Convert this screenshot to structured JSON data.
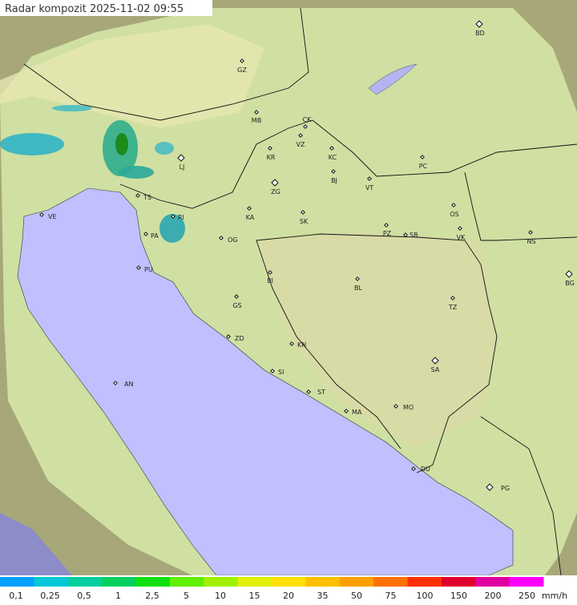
{
  "header": {
    "title": "Radar kompozit  2025-11-02  09:55"
  },
  "cities": [
    "BD",
    "GZ",
    "MB",
    "CK",
    "VZ",
    "KR",
    "KC",
    "PC",
    "LJ",
    "ZG",
    "BJ",
    "VT",
    "TS",
    "KA",
    "SK",
    "OS",
    "VE",
    "RI",
    "PA",
    "OG",
    "PZ",
    "SB",
    "VK",
    "NS",
    "PU",
    "BI",
    "BL",
    "BG",
    "GS",
    "TZ",
    "ZD",
    "KN",
    "SA",
    "AN",
    "SI",
    "ST",
    "MA",
    "MO",
    "DU",
    "PG"
  ],
  "legend": {
    "labels": [
      "0,1",
      "0,25",
      "0,5",
      "1",
      "2,5",
      "5",
      "10",
      "15",
      "20",
      "35",
      "50",
      "75",
      "100",
      "150",
      "200",
      "250"
    ],
    "unit": "mm/h"
  }
}
